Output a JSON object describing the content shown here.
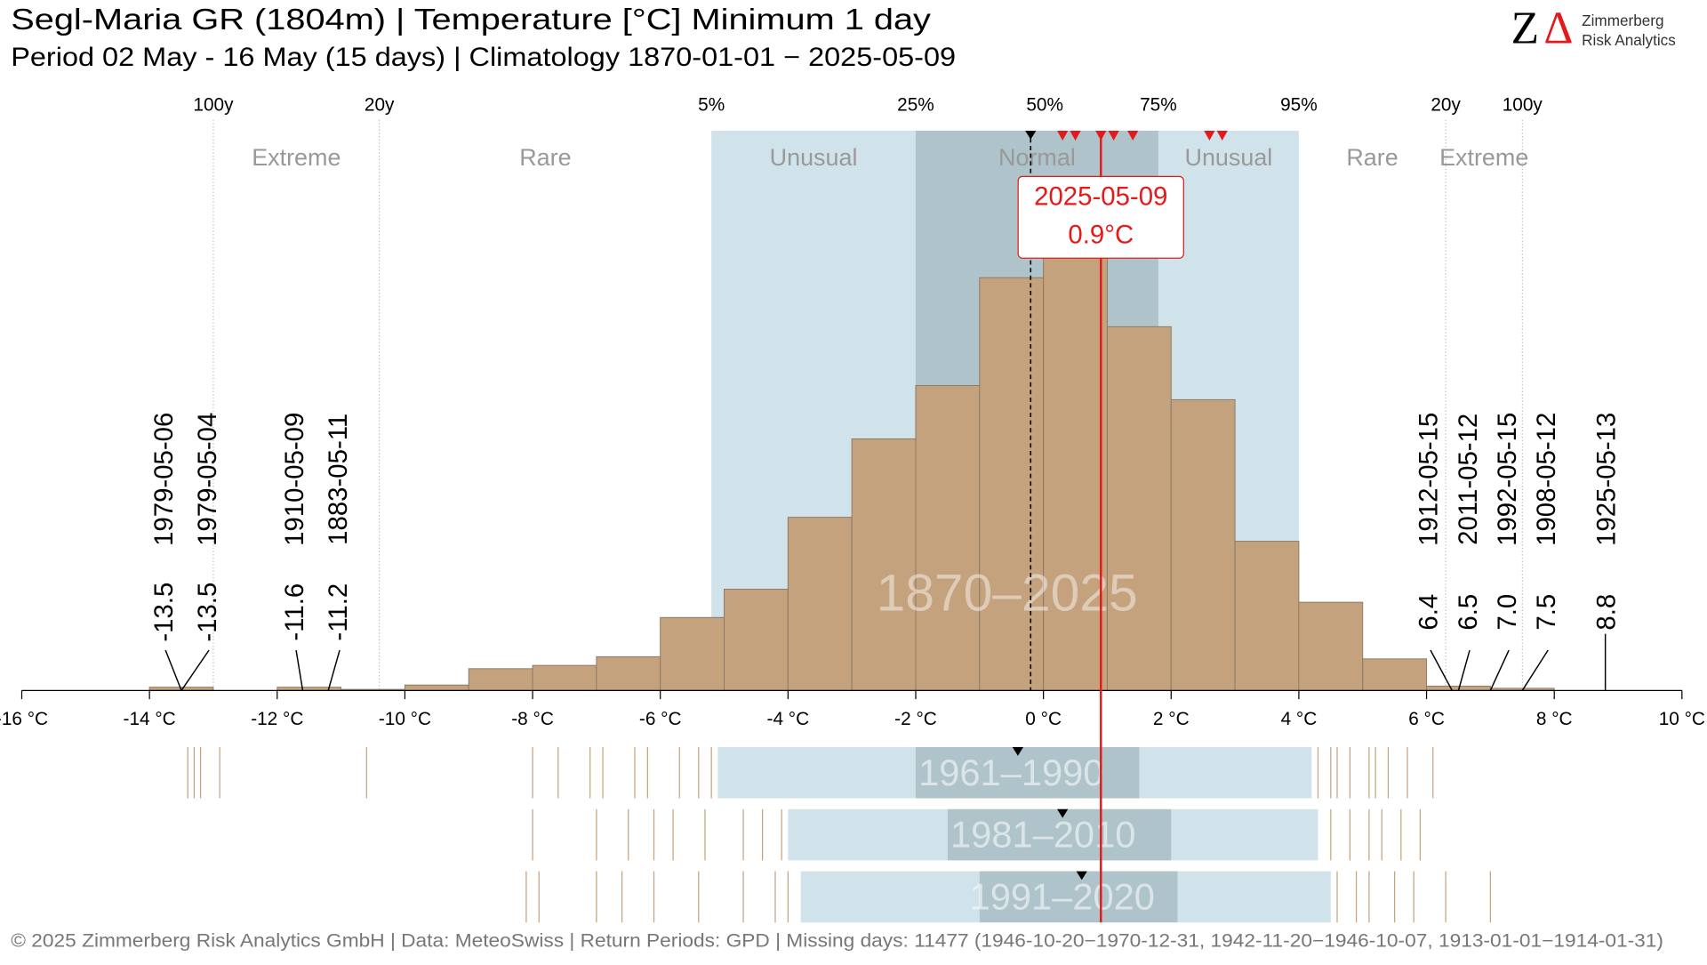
{
  "chart_data": {
    "type": "histogram",
    "title": "Segl-Maria  GR (1804m) | Temperature [°C] Minimum 1 day",
    "subtitle": "Period 02 May - 16 May (15 days) | Climatology 1870-01-01 − 2025-05-09",
    "logo": {
      "mark_z": "Z",
      "mark_delta": "Δ",
      "line1": "Zimmerberg",
      "line2": "Risk Analytics"
    },
    "period_label": "1870–2025",
    "bins": [
      -14,
      -13,
      -12,
      -11,
      -10,
      -9,
      -8,
      -7,
      -6,
      -5,
      -4,
      -3,
      -2,
      -1,
      0,
      1,
      2,
      3,
      4,
      5,
      6,
      7,
      8
    ],
    "values": [
      3,
      0,
      3,
      1,
      5,
      20,
      23,
      31,
      67,
      93,
      159,
      231,
      280,
      379,
      429,
      334,
      267,
      137,
      81,
      29,
      4,
      2
    ],
    "color": "#c4a27e",
    "ylim": [
      0,
      514
    ],
    "xlim": [
      -16,
      10
    ],
    "xticks": [
      {
        "value": -16,
        "label": "-16 °C"
      },
      {
        "value": -14,
        "label": "-14 °C"
      },
      {
        "value": -12,
        "label": "-12 °C"
      },
      {
        "value": -10,
        "label": "-10 °C"
      },
      {
        "value": -8,
        "label": "-8 °C"
      },
      {
        "value": -6,
        "label": "-6 °C"
      },
      {
        "value": -4,
        "label": "-4 °C"
      },
      {
        "value": -2,
        "label": "-2 °C"
      },
      {
        "value": 0,
        "label": "0 °C"
      },
      {
        "value": 2,
        "label": "2 °C"
      },
      {
        "value": 4,
        "label": "4 °C"
      },
      {
        "value": 6,
        "label": "6 °C"
      },
      {
        "value": 8,
        "label": "8 °C"
      },
      {
        "value": 10,
        "label": "10 °C"
      }
    ],
    "markers": [
      {
        "value": -13.0,
        "label": "100y"
      },
      {
        "value": -10.4,
        "label": "20y"
      },
      {
        "value": -5.2,
        "label": "5%"
      },
      {
        "value": -2.0,
        "label": "25%"
      },
      {
        "value": 1.8,
        "label": "75%"
      },
      {
        "value": 4.0,
        "label": "95%"
      },
      {
        "value": 6.3,
        "label": "20y"
      },
      {
        "value": 7.5,
        "label": "100y"
      }
    ],
    "median": {
      "value": -0.2,
      "label": "50%"
    },
    "classes": [
      "Extreme",
      "Rare",
      "Unusual",
      "Normal",
      "Unusual",
      "Rare",
      "Extreme"
    ],
    "current": {
      "date": "2025-05-09",
      "value": 0.9,
      "value_label": "0.9°C",
      "color": "#e31a1c"
    },
    "recent_days": [
      0.3,
      0.5,
      0.9,
      1.1,
      1.4,
      2.6,
      2.8
    ],
    "extremes_low": [
      {
        "date": "1979-05-06",
        "value": -13.5,
        "value_label": "-13.5"
      },
      {
        "date": "1979-05-04",
        "value": -13.5,
        "value_label": "-13.5"
      },
      {
        "date": "1910-05-09",
        "value": -11.6,
        "value_label": "-11.6"
      },
      {
        "date": "1883-05-11",
        "value": -11.2,
        "value_label": "-11.2"
      }
    ],
    "extremes_high": [
      {
        "date": "1912-05-15",
        "value": 6.4,
        "value_label": "6.4"
      },
      {
        "date": "2011-05-12",
        "value": 6.5,
        "value_label": "6.5"
      },
      {
        "date": "1992-05-15",
        "value": 7.0,
        "value_label": "7.0"
      },
      {
        "date": "1908-05-12",
        "value": 7.5,
        "value_label": "7.5"
      },
      {
        "date": "1925-05-13",
        "value": 8.8,
        "value_label": "8.8"
      }
    ],
    "climatologies": [
      {
        "name": "1961–1990",
        "p5": -5.1,
        "p25": -2.0,
        "p50": -0.4,
        "p75": 1.5,
        "p95": 4.2,
        "values": [
          -13.4,
          -13.3,
          -13.2,
          -12.9,
          -10.6,
          -8.0,
          -7.6,
          -7.1,
          -6.9,
          -6.4,
          -6.2,
          -5.7,
          -5.4,
          -5.2,
          4.3,
          4.5,
          4.6,
          4.8,
          5.1,
          5.2,
          5.4,
          5.7,
          6.1
        ]
      },
      {
        "name": "1981–2010",
        "p5": -4.0,
        "p25": -1.5,
        "p50": 0.3,
        "p75": 2.0,
        "p95": 4.3,
        "values": [
          -8.0,
          -7.0,
          -6.5,
          -6.1,
          -5.8,
          -5.3,
          -4.7,
          -4.4,
          -4.1,
          4.5,
          4.8,
          5.1,
          5.3,
          5.6,
          5.9
        ]
      },
      {
        "name": "1991–2020",
        "p5": -3.8,
        "p25": -1.0,
        "p50": 0.6,
        "p75": 2.1,
        "p95": 4.5,
        "values": [
          -8.1,
          -7.9,
          -7.0,
          -6.6,
          -6.1,
          -5.4,
          -4.7,
          -4.2,
          -4.0,
          4.6,
          4.9,
          5.1,
          5.5,
          5.8,
          6.3,
          7.0
        ]
      }
    ],
    "footer": "©  2025 Zimmerberg Risk Analytics GmbH | Data: MeteoSwiss | Return Periods: GPD | Missing days: 11477 (1946-10-20−1970-12-31, 1942-11-20−1946-10-07, 1913-01-01−1914-01-31)"
  }
}
